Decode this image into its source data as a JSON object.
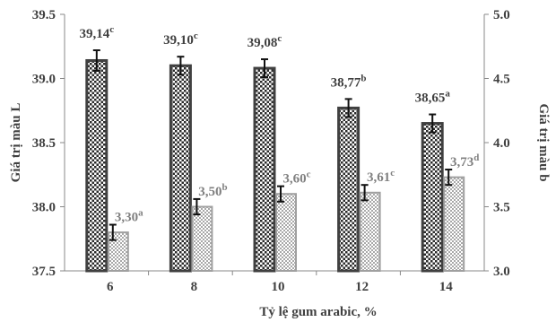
{
  "chart_data": {
    "type": "bar",
    "title": "",
    "xlabel": "Tỷ lệ gum arabic, %",
    "ylabel": "Giá trị màu L",
    "y2label": "Giá trị màu b",
    "categories": [
      "6",
      "8",
      "10",
      "12",
      "14"
    ],
    "ylim": [
      37.5,
      39.5
    ],
    "y2lim": [
      3.0,
      5.0
    ],
    "yticks": [
      "37.5",
      "38.0",
      "38.5",
      "39.0",
      "39.5"
    ],
    "y2ticks": [
      "3.0",
      "3.5",
      "4.0",
      "4.5",
      "5.0"
    ],
    "grid": false,
    "legend": "none",
    "series": [
      {
        "axis": "left",
        "values": [
          39.14,
          39.1,
          39.08,
          38.77,
          38.65
        ],
        "errors": [
          0.08,
          0.07,
          0.07,
          0.07,
          0.07
        ],
        "labels": [
          "39,14",
          "39,10",
          "39,08",
          "38,77",
          "38,65"
        ],
        "letters": [
          "c",
          "c",
          "c",
          "b",
          "a"
        ],
        "color": "#404040"
      },
      {
        "axis": "right",
        "values": [
          3.3,
          3.5,
          3.6,
          3.61,
          3.73
        ],
        "errors": [
          0.06,
          0.06,
          0.06,
          0.06,
          0.06
        ],
        "labels": [
          "3,30",
          "3,50",
          "3,60",
          "3,61",
          "3,73"
        ],
        "letters": [
          "a",
          "b",
          "c",
          "c",
          "d"
        ],
        "color": "#a0a0a0"
      }
    ]
  }
}
